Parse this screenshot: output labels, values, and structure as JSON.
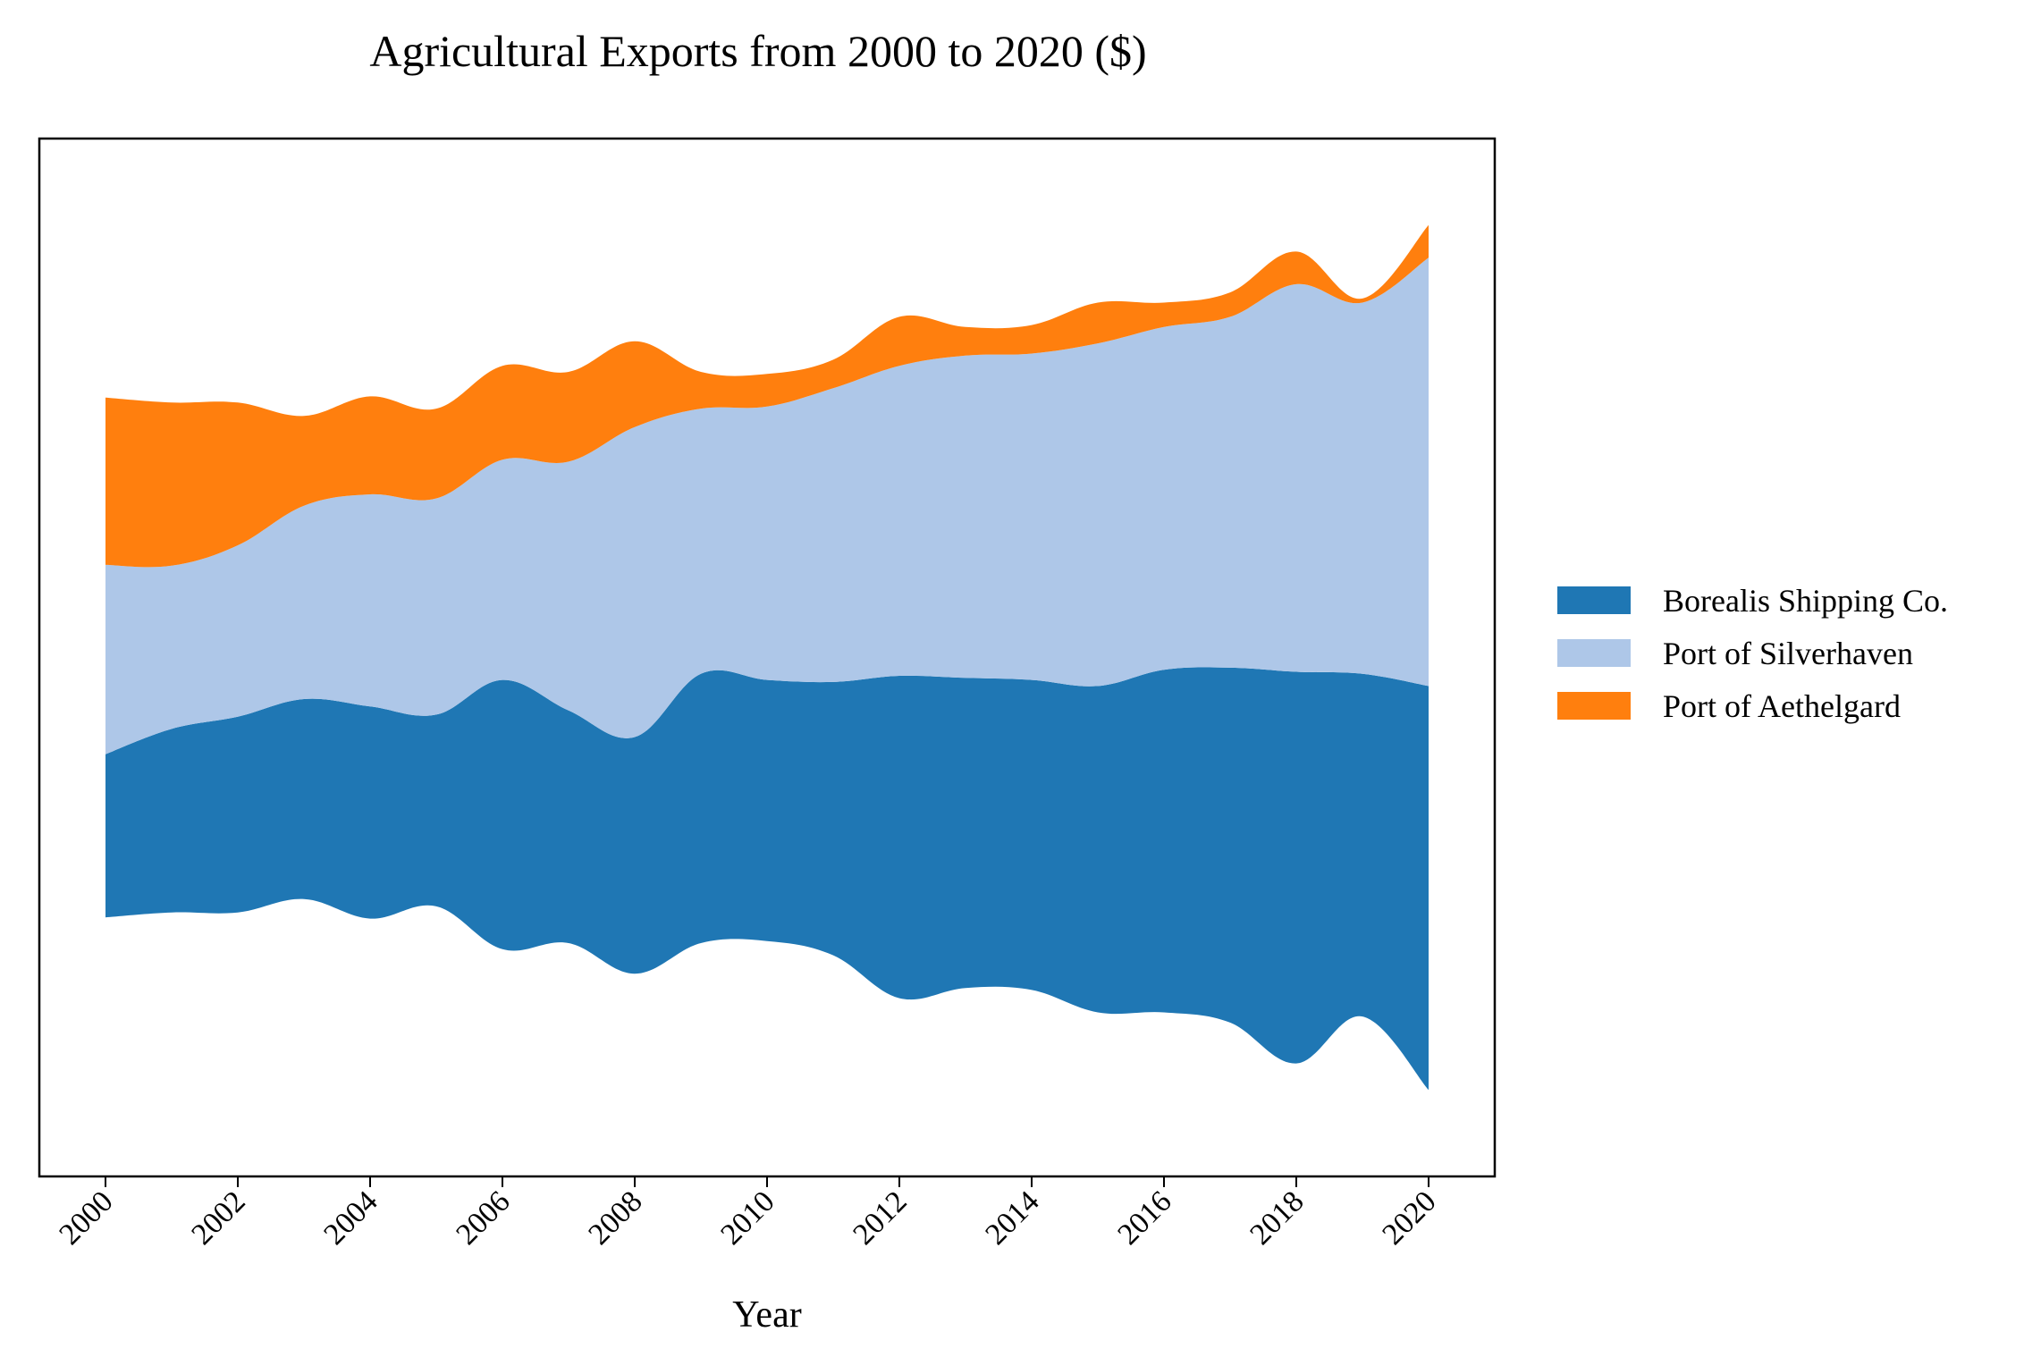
{
  "chart_data": {
    "type": "area",
    "subtype": "streamgraph",
    "title": "Agricultural Exports from 2000 to 2020 ($)",
    "xlabel": "Year",
    "ylabel": "",
    "x": [
      2000,
      2001,
      2002,
      2003,
      2004,
      2005,
      2006,
      2007,
      2008,
      2009,
      2010,
      2011,
      2012,
      2013,
      2014,
      2015,
      2016,
      2017,
      2018,
      2019,
      2020
    ],
    "xticks": [
      "2000",
      "2002",
      "2004",
      "2006",
      "2008",
      "2010",
      "2012",
      "2014",
      "2016",
      "2018",
      "2020"
    ],
    "xlim": [
      1999,
      2021
    ],
    "y_ticks_visible": false,
    "series": [
      {
        "name": "Borealis Shipping Co.",
        "color": "#1f77b4",
        "values": [
          200,
          225,
          240,
          245,
          260,
          235,
          330,
          285,
          290,
          330,
          320,
          335,
          395,
          380,
          380,
          400,
          420,
          435,
          480,
          420,
          495
        ]
      },
      {
        "name": "Port of Silverhaven",
        "color": "#aec7e8",
        "values": [
          232,
          200,
          210,
          237,
          260,
          265,
          270,
          305,
          380,
          325,
          335,
          360,
          380,
          395,
          400,
          420,
          420,
          430,
          475,
          455,
          525
        ]
      },
      {
        "name": "Port of Aethelgard",
        "color": "#ff7f0e",
        "values": [
          205,
          200,
          175,
          110,
          120,
          110,
          115,
          110,
          105,
          45,
          40,
          35,
          60,
          35,
          35,
          50,
          30,
          30,
          40,
          5,
          40
        ]
      }
    ],
    "legend_position": "center-right",
    "grid": false
  }
}
